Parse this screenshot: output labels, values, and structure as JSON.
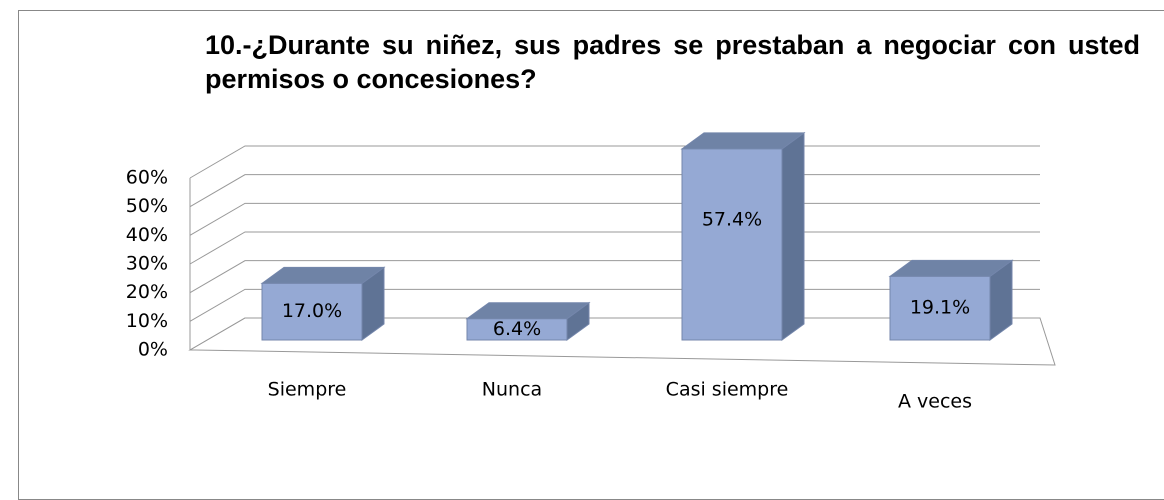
{
  "chart_data": {
    "type": "bar3d",
    "title": "10.-¿Durante su niñez, sus padres se prestaban a negociar con usted permisos o concesiones?",
    "categories": [
      "Siempre",
      "Nunca",
      "Casi siempre",
      "A veces"
    ],
    "values": [
      17.0,
      6.4,
      57.4,
      19.1
    ],
    "value_labels": [
      "17.0%",
      "6.4%",
      "57.4%",
      "19.1%"
    ],
    "color": "#95a9d4",
    "ylim": [
      0,
      60
    ],
    "yticks": [
      {
        "value": 0,
        "label": "0%"
      },
      {
        "value": 10,
        "label": "10%"
      },
      {
        "value": 20,
        "label": "20%"
      },
      {
        "value": 30,
        "label": "30%"
      },
      {
        "value": 40,
        "label": "40%"
      },
      {
        "value": 50,
        "label": "50%"
      },
      {
        "value": 60,
        "label": "60%"
      }
    ],
    "grid": true
  }
}
